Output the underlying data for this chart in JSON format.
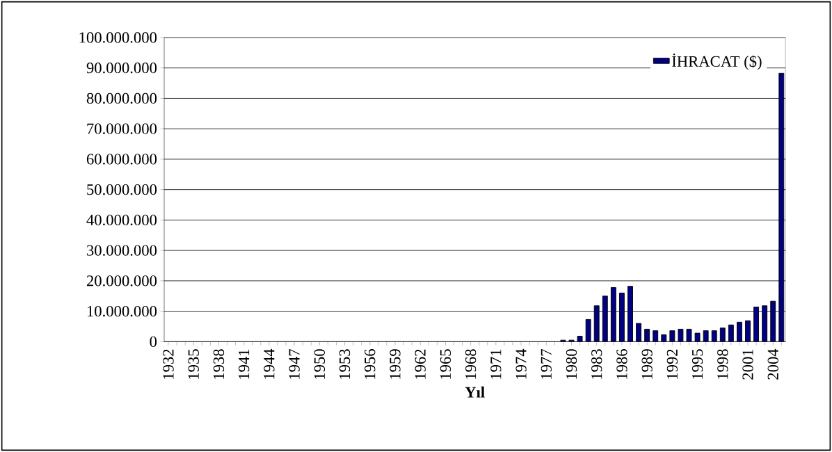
{
  "chart_data": {
    "type": "bar",
    "xlabel": "Yıl",
    "categories": [
      "1932",
      null,
      null,
      "1935",
      null,
      null,
      "1938",
      null,
      null,
      "1941",
      null,
      null,
      "1944",
      null,
      null,
      "1947",
      null,
      null,
      "1950",
      null,
      null,
      "1953",
      null,
      null,
      "1956",
      null,
      null,
      "1959",
      null,
      null,
      "1962",
      null,
      null,
      "1965",
      null,
      null,
      "1968",
      null,
      null,
      "1971",
      null,
      null,
      "1974",
      null,
      null,
      "1977",
      null,
      null,
      "1980",
      null,
      null,
      "1983",
      null,
      null,
      "1986",
      null,
      null,
      "1989",
      null,
      null,
      "1992",
      null,
      null,
      "1995",
      null,
      null,
      "1998",
      null,
      null,
      "2001",
      null,
      null,
      "2004",
      null
    ],
    "series": [
      {
        "name": "İHRACAT ($)",
        "color": "#000080",
        "values": [
          null,
          null,
          null,
          null,
          null,
          null,
          null,
          null,
          null,
          null,
          null,
          null,
          null,
          null,
          null,
          null,
          null,
          null,
          null,
          null,
          null,
          null,
          null,
          null,
          null,
          null,
          null,
          null,
          null,
          null,
          null,
          null,
          null,
          null,
          null,
          null,
          null,
          null,
          null,
          null,
          null,
          null,
          null,
          null,
          null,
          null,
          null,
          500000,
          500000,
          1800000,
          7300000,
          11800000,
          15000000,
          17800000,
          16000000,
          18200000,
          6000000,
          4100000,
          3600000,
          2300000,
          3600000,
          4100000,
          4100000,
          2800000,
          3600000,
          3600000,
          4500000,
          5500000,
          6400000,
          6900000,
          11400000,
          11800000,
          13300000,
          88300000
        ]
      }
    ],
    "ylim": [
      0,
      100000000
    ],
    "yticks": [
      0,
      {
        "value": 10000000,
        "label": "10.000.000"
      },
      {
        "value": 20000000,
        "label": "20.000.000"
      },
      {
        "value": 30000000,
        "label": "30.000.000"
      },
      {
        "value": 40000000,
        "label": "40.000.000"
      },
      {
        "value": 50000000,
        "label": "50.000.000"
      },
      {
        "value": 60000000,
        "label": "60.000.000"
      },
      {
        "value": 70000000,
        "label": "70.000.000"
      },
      {
        "value": 80000000,
        "label": "80.000.000"
      },
      {
        "value": 90000000,
        "label": "90.000.000"
      },
      {
        "value": 100000000,
        "label": "100.000.000"
      }
    ],
    "grid": "y",
    "legend": "top right"
  }
}
